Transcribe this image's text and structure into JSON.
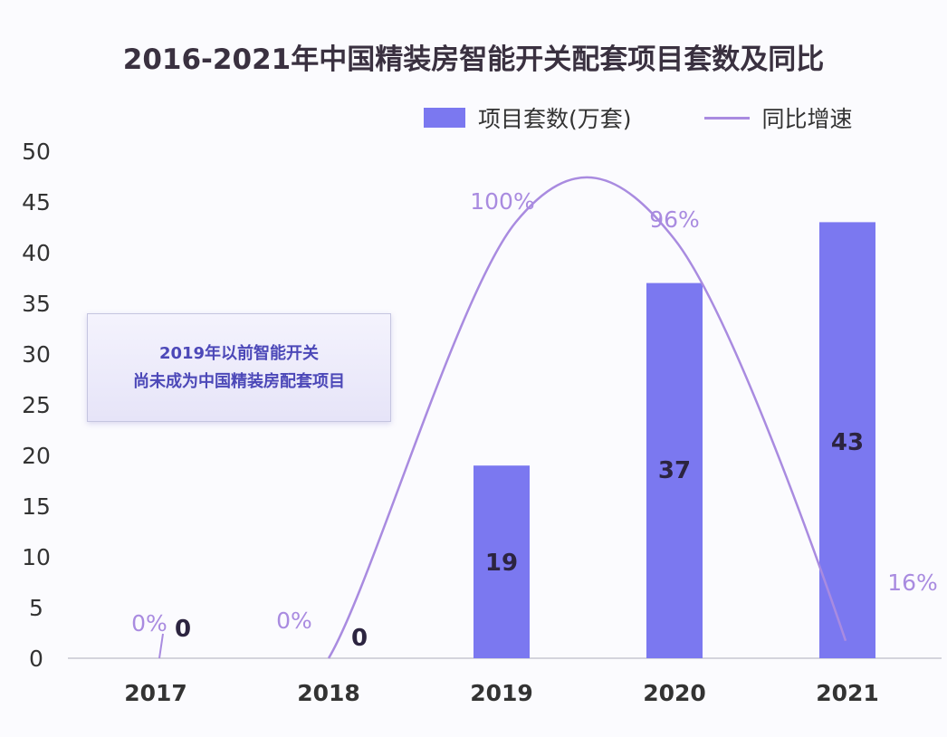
{
  "chart_data": {
    "type": "bar+line",
    "title": "2016-2021年中国精装房智能开关配套项目套数及同比",
    "categories": [
      "2017",
      "2018",
      "2019",
      "2020",
      "2021"
    ],
    "ylim": [
      0,
      50
    ],
    "yticks": [
      "0",
      "5",
      "10",
      "15",
      "20",
      "25",
      "30",
      "35",
      "40",
      "45",
      "50"
    ],
    "grid": false,
    "legend_position": "top-right",
    "series": [
      {
        "name": "项目套数(万套)",
        "type": "bar",
        "color": "#7b78f0",
        "values": [
          0,
          0,
          19,
          37,
          43
        ],
        "labels": [
          "0",
          "0",
          "19",
          "37",
          "43"
        ]
      },
      {
        "name": "同比增速",
        "type": "line",
        "color": "#a98be0",
        "values": [
          0,
          0,
          100,
          96,
          16
        ],
        "labels": [
          "0%",
          "0%",
          "100%",
          "96%",
          "16%"
        ]
      }
    ],
    "annotation": [
      "2019年以前智能开关",
      "尚未成为中国精装房配套项目"
    ]
  }
}
